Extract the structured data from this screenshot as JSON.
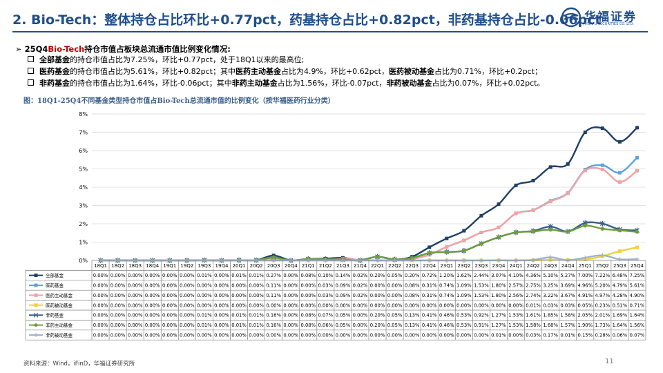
{
  "title": "2. Bio-Tech：整体持仓占比环比+0.77pct，药基持仓占比+0.82pct，非药基持仓占比-0.06pct",
  "logo": {
    "cn": "华福证券",
    "en": "HUAFU SECURITIES CO.,LTD."
  },
  "heading": {
    "prefix": "25Q4",
    "highlight": "Bio-Tech",
    "suffix": "持仓市值占板块总流通市值比例变化情况:"
  },
  "bullets": [
    [
      {
        "t": "全部基金",
        "b": true
      },
      {
        "t": "的持仓市值占比为7.25%，环比+0.77pct，处于18Q1以来的最高位;",
        "b": false
      }
    ],
    [
      {
        "t": "医药基金",
        "b": true
      },
      {
        "t": "的持仓市值占比为5.61%，环比+0.82pct；其中",
        "b": false
      },
      {
        "t": "医药主动基金",
        "b": true
      },
      {
        "t": "占比为4.9%，环比+0.62pct，",
        "b": false
      },
      {
        "t": "医药被动基金",
        "b": true
      },
      {
        "t": "占比为0.71%，环比+0.2pct；",
        "b": false
      }
    ],
    [
      {
        "t": "非药基金",
        "b": true
      },
      {
        "t": "的持仓市值占比为1.64%，环比-0.06pct；其中",
        "b": false
      },
      {
        "t": "非药主动基金",
        "b": true
      },
      {
        "t": "占比为1.56%，环比-0.07pct，",
        "b": false
      },
      {
        "t": "非药被动基金",
        "b": true
      },
      {
        "t": "占比为0.07%，环比+0.02pct。",
        "b": false
      }
    ]
  ],
  "figure_title": "图：18Q1-25Q4不同基金类型持仓市值占Bio-Tech总流通市值的比例变化（按华福医药行业分类）",
  "source": "资料来源：Wind，iFinD，华福证券研究所",
  "page_number": "11",
  "chart_data": {
    "type": "line",
    "x": [
      "18Q1",
      "18Q2",
      "18Q3",
      "18Q4",
      "19Q1",
      "19Q2",
      "19Q3",
      "19Q4",
      "20Q1",
      "20Q2",
      "20Q3",
      "20Q4",
      "21Q1",
      "21Q2",
      "21Q3",
      "21Q4",
      "22Q1",
      "22Q2",
      "22Q3",
      "22Q4",
      "23Q1",
      "23Q2",
      "23Q3",
      "23Q4",
      "24Q1",
      "24Q2",
      "24Q3",
      "24Q4",
      "25Q1",
      "25Q2",
      "25Q3",
      "25Q4"
    ],
    "ylim": [
      0,
      8
    ],
    "yticks": [
      "0%",
      "1%",
      "2%",
      "3%",
      "4%",
      "5%",
      "6%",
      "7%",
      "8%"
    ],
    "grid": true,
    "series": [
      {
        "name": "全部基金",
        "color": "#1f3f66",
        "marker": "square",
        "labels": [
          "0.00%",
          "0.00%",
          "0.00%",
          "0.00%",
          "0.00%",
          "0.00%",
          "0.01%",
          "0.00%",
          "0.01%",
          "0.01%",
          "0.27%",
          "0.00%",
          "0.08%",
          "0.10%",
          "0.14%",
          "0.02%",
          "0.20%",
          "0.05%",
          "0.20%",
          "0.72%",
          "1.20%",
          "1.62%",
          "2.44%",
          "3.07%",
          "4.10%",
          "4.36%",
          "5.10%",
          "5.27%",
          "7.00%",
          "7.22%",
          "6.48%",
          "7.25%"
        ],
        "values": [
          0,
          0,
          0,
          0,
          0,
          0,
          0.01,
          0,
          0.01,
          0.01,
          0.27,
          0,
          0.08,
          0.1,
          0.14,
          0.02,
          0.2,
          0.05,
          0.2,
          0.72,
          1.2,
          1.62,
          2.44,
          3.07,
          4.1,
          4.36,
          5.1,
          5.27,
          7.0,
          7.22,
          6.48,
          7.25
        ]
      },
      {
        "name": "医药基金",
        "color": "#5ba3dc",
        "marker": "square",
        "labels": [
          "0.00%",
          "0.00%",
          "0.00%",
          "0.00%",
          "0.00%",
          "0.00%",
          "0.00%",
          "0.00%",
          "0.00%",
          "0.00%",
          "0.11%",
          "0.00%",
          "0.00%",
          "0.03%",
          "0.09%",
          "0.02%",
          "0.00%",
          "0.00%",
          "0.08%",
          "0.31%",
          "0.74%",
          "1.09%",
          "1.53%",
          "1.80%",
          "2.57%",
          "2.75%",
          "3.25%",
          "3.69%",
          "4.96%",
          "5.20%",
          "4.79%",
          "5.61%"
        ],
        "values": [
          0,
          0,
          0,
          0,
          0,
          0,
          0,
          0,
          0,
          0,
          0.11,
          0,
          0,
          0.03,
          0.09,
          0.02,
          0,
          0,
          0.08,
          0.31,
          0.74,
          1.09,
          1.53,
          1.8,
          2.57,
          2.75,
          3.25,
          3.69,
          4.96,
          5.2,
          4.79,
          5.61
        ]
      },
      {
        "name": "医药主动基金",
        "color": "#f0a3a3",
        "marker": "square",
        "labels": [
          "0.00%",
          "0.00%",
          "0.00%",
          "0.00%",
          "0.00%",
          "0.00%",
          "0.00%",
          "0.00%",
          "0.00%",
          "0.00%",
          "0.11%",
          "0.00%",
          "0.00%",
          "0.03%",
          "0.09%",
          "0.02%",
          "0.00%",
          "0.00%",
          "0.08%",
          "0.31%",
          "0.74%",
          "1.09%",
          "1.53%",
          "1.80%",
          "2.56%",
          "2.74%",
          "3.22%",
          "3.67%",
          "4.91%",
          "4.97%",
          "4.28%",
          "4.90%"
        ],
        "values": [
          0,
          0,
          0,
          0,
          0,
          0,
          0,
          0,
          0,
          0,
          0.11,
          0,
          0,
          0.03,
          0.09,
          0.02,
          0,
          0,
          0.08,
          0.31,
          0.74,
          1.09,
          1.53,
          1.8,
          2.56,
          2.74,
          3.22,
          3.67,
          4.91,
          4.97,
          4.28,
          4.9
        ]
      },
      {
        "name": "医药被动基金",
        "color": "#f2d03b",
        "marker": "square",
        "labels": [
          "0.00%",
          "0.00%",
          "0.00%",
          "0.00%",
          "0.00%",
          "0.00%",
          "0.00%",
          "0.00%",
          "0.00%",
          "0.00%",
          "0.00%",
          "0.00%",
          "0.00%",
          "0.00%",
          "0.00%",
          "0.00%",
          "0.00%",
          "0.00%",
          "0.00%",
          "0.00%",
          "0.00%",
          "0.00%",
          "0.00%",
          "0.00%",
          "0.00%",
          "0.01%",
          "0.03%",
          "0.03%",
          "0.05%",
          "0.23%",
          "0.51%",
          "0.71%"
        ],
        "values": [
          0,
          0,
          0,
          0,
          0,
          0,
          0,
          0,
          0,
          0,
          0,
          0,
          0,
          0,
          0,
          0,
          0,
          0,
          0,
          0,
          0,
          0,
          0,
          0,
          0,
          0.01,
          0.03,
          0.03,
          0.05,
          0.23,
          0.51,
          0.71
        ]
      },
      {
        "name": "非药基金",
        "color": "#3a5f8a",
        "marker": "star",
        "labels": [
          "0.00%",
          "0.00%",
          "0.00%",
          "0.00%",
          "0.00%",
          "0.00%",
          "0.01%",
          "0.00%",
          "0.01%",
          "0.01%",
          "0.16%",
          "0.00%",
          "0.08%",
          "0.07%",
          "0.05%",
          "0.00%",
          "0.20%",
          "0.05%",
          "0.13%",
          "0.41%",
          "0.46%",
          "0.53%",
          "0.92%",
          "1.27%",
          "1.53%",
          "1.61%",
          "1.85%",
          "1.58%",
          "2.05%",
          "2.01%",
          "1.69%",
          "1.64%"
        ],
        "values": [
          0,
          0,
          0,
          0,
          0,
          0,
          0.01,
          0,
          0.01,
          0.01,
          0.16,
          0,
          0.08,
          0.07,
          0.05,
          0,
          0.2,
          0.05,
          0.13,
          0.41,
          0.46,
          0.53,
          0.92,
          1.27,
          1.53,
          1.61,
          1.85,
          1.58,
          2.05,
          2.01,
          1.69,
          1.64
        ]
      },
      {
        "name": "非药主动基金",
        "color": "#6e9d3f",
        "marker": "circle",
        "labels": [
          "0.00%",
          "0.00%",
          "0.00%",
          "0.00%",
          "0.00%",
          "0.00%",
          "0.01%",
          "0.00%",
          "0.01%",
          "0.01%",
          "0.16%",
          "0.00%",
          "0.08%",
          "0.06%",
          "0.05%",
          "0.00%",
          "0.20%",
          "0.05%",
          "0.13%",
          "0.41%",
          "0.46%",
          "0.53%",
          "0.91%",
          "1.27%",
          "1.53%",
          "1.58%",
          "1.68%",
          "1.57%",
          "1.90%",
          "1.73%",
          "1.64%",
          "1.56%"
        ],
        "values": [
          0,
          0,
          0,
          0,
          0,
          0,
          0.01,
          0,
          0.01,
          0.01,
          0.16,
          0,
          0.08,
          0.06,
          0.05,
          0,
          0.2,
          0.05,
          0.13,
          0.41,
          0.46,
          0.53,
          0.91,
          1.27,
          1.53,
          1.58,
          1.68,
          1.57,
          1.9,
          1.73,
          1.64,
          1.56
        ]
      },
      {
        "name": "非药被动基金",
        "color": "#9fb3c8",
        "marker": "plus",
        "labels": [
          "0.00%",
          "0.00%",
          "0.00%",
          "0.00%",
          "0.00%",
          "0.00%",
          "0.00%",
          "0.00%",
          "0.00%",
          "0.00%",
          "0.00%",
          "0.00%",
          "0.00%",
          "0.00%",
          "0.00%",
          "0.00%",
          "0.00%",
          "0.00%",
          "0.00%",
          "0.00%",
          "0.00%",
          "0.00%",
          "0.00%",
          "0.01%",
          "0.00%",
          "0.03%",
          "0.17%",
          "0.01%",
          "0.15%",
          "0.28%",
          "0.06%",
          "0.07%"
        ],
        "values": [
          0,
          0,
          0,
          0,
          0,
          0,
          0,
          0,
          0,
          0,
          0,
          0,
          0,
          0,
          0,
          0,
          0,
          0,
          0,
          0,
          0,
          0,
          0,
          0.01,
          0,
          0.03,
          0.17,
          0.01,
          0.15,
          0.28,
          0.06,
          0.07
        ]
      }
    ]
  }
}
